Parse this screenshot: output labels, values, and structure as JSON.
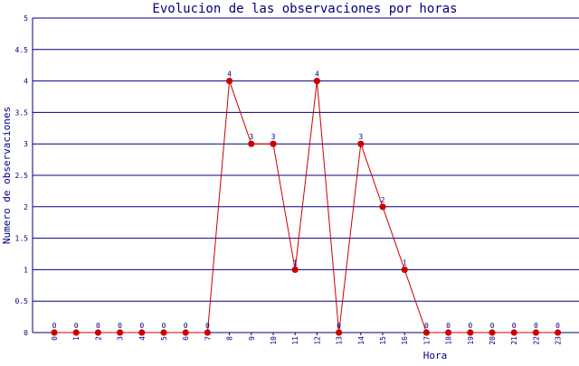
{
  "colors": {
    "background": "#ffffff",
    "title": "#000080",
    "axis_label": "#000080",
    "tick": "#000080",
    "grid": "#000080",
    "line": "#cc0000",
    "marker": "#cc0000",
    "data_label": "#000080"
  },
  "chart_data": {
    "type": "line",
    "title": "Evolucion de las observaciones por horas",
    "xlabel": "Hora",
    "ylabel": "Numero de observaciones",
    "categories": [
      "0",
      "1",
      "2",
      "3",
      "4",
      "5",
      "6",
      "7",
      "8",
      "9",
      "10",
      "11",
      "12",
      "13",
      "14",
      "15",
      "16",
      "17",
      "18",
      "19",
      "20",
      "21",
      "22",
      "23"
    ],
    "series": [
      {
        "values": [
          0,
          0,
          0,
          0,
          0,
          0,
          0,
          0,
          4,
          3,
          3,
          1,
          4,
          0,
          3,
          2,
          1,
          0,
          0,
          0,
          0,
          0,
          0,
          0
        ]
      }
    ],
    "ylim": [
      0,
      5
    ],
    "yticks": [
      "0",
      "0.5",
      "1",
      "1.5",
      "2",
      "2.5",
      "3",
      "3.5",
      "4",
      "4.5",
      "5"
    ],
    "grid": true,
    "legend": "none"
  }
}
